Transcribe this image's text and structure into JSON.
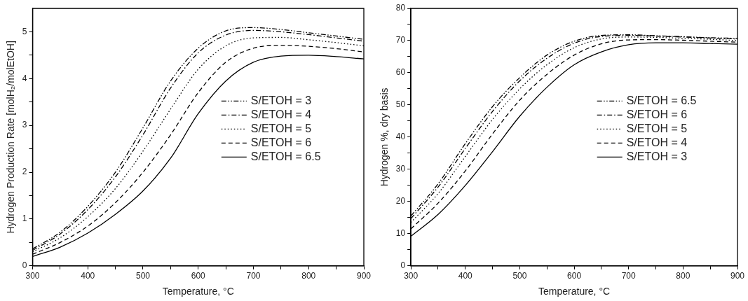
{
  "chart_data": [
    {
      "type": "line",
      "xlabel": "Temperature, °C",
      "ylabel": "Hydrogen Production Rate [molH₂/molEtOH]",
      "x": [
        300,
        350,
        400,
        450,
        500,
        550,
        600,
        650,
        700,
        750,
        800,
        850,
        900
      ],
      "xlim": [
        300,
        900
      ],
      "xticks": [
        300,
        {
          "value": 350,
          "label": null
        },
        400,
        {
          "value": 450,
          "label": null
        },
        500,
        {
          "value": 550,
          "label": null
        },
        600,
        {
          "value": 650,
          "label": null
        },
        700,
        {
          "value": 750,
          "label": null
        },
        800,
        {
          "value": 850,
          "label": null
        },
        900
      ],
      "ylim": [
        0,
        5.5
      ],
      "yticks": [
        0,
        {
          "value": 0.5,
          "label": null
        },
        1,
        {
          "value": 1.5,
          "label": null
        },
        2,
        {
          "value": 2.5,
          "label": null
        },
        3,
        {
          "value": 3.5,
          "label": null
        },
        4,
        {
          "value": 4.5,
          "label": null
        },
        5
      ],
      "grid": false,
      "legend": "right",
      "marker": "none",
      "series": [
        {
          "name": "S/ETOH = 3",
          "color": "#000000",
          "line_style": "dashdotdot",
          "values": [
            0.36,
            0.72,
            1.27,
            2.0,
            2.95,
            3.95,
            4.65,
            5.02,
            5.09,
            5.05,
            4.98,
            4.91,
            4.84
          ]
        },
        {
          "name": "S/ETOH = 4",
          "color": "#000000",
          "line_style": "dashdot",
          "values": [
            0.33,
            0.68,
            1.2,
            1.9,
            2.8,
            3.8,
            4.55,
            4.93,
            5.03,
            5.0,
            4.94,
            4.87,
            4.8
          ]
        },
        {
          "name": "S/ETOH = 5",
          "color": "#000000",
          "line_style": "dotted",
          "values": [
            0.3,
            0.6,
            1.05,
            1.65,
            2.45,
            3.35,
            4.2,
            4.7,
            4.87,
            4.88,
            4.83,
            4.77,
            4.7
          ]
        },
        {
          "name": "S/ETOH = 6",
          "color": "#000000",
          "line_style": "dashed",
          "values": [
            0.25,
            0.5,
            0.85,
            1.35,
            2.0,
            2.8,
            3.7,
            4.35,
            4.65,
            4.71,
            4.69,
            4.64,
            4.57
          ]
        },
        {
          "name": "S/ETOH = 6.5",
          "color": "#000000",
          "line_style": "solid",
          "values": [
            0.2,
            0.4,
            0.7,
            1.1,
            1.6,
            2.3,
            3.25,
            3.95,
            4.35,
            4.48,
            4.5,
            4.47,
            4.42
          ]
        }
      ]
    },
    {
      "type": "line",
      "xlabel": "Temperature, °C",
      "ylabel": "Hydrogen %, dry basis",
      "x": [
        300,
        350,
        400,
        450,
        500,
        550,
        600,
        650,
        700,
        750,
        800,
        850,
        900
      ],
      "xlim": [
        300,
        900
      ],
      "xticks": [
        300,
        {
          "value": 350,
          "label": null
        },
        400,
        {
          "value": 450,
          "label": null
        },
        500,
        {
          "value": 550,
          "label": null
        },
        600,
        {
          "value": 650,
          "label": null
        },
        700,
        {
          "value": 750,
          "label": null
        },
        800,
        {
          "value": 850,
          "label": null
        },
        900
      ],
      "ylim": [
        0,
        80
      ],
      "yticks": [
        0,
        {
          "value": 5,
          "label": null
        },
        10,
        {
          "value": 15,
          "label": null
        },
        20,
        {
          "value": 25,
          "label": null
        },
        30,
        {
          "value": 35,
          "label": null
        },
        40,
        {
          "value": 45,
          "label": null
        },
        50,
        {
          "value": 55,
          "label": null
        },
        60,
        {
          "value": 65,
          "label": null
        },
        70,
        {
          "value": 75,
          "label": null
        },
        80
      ],
      "grid": false,
      "legend": "right",
      "marker": "none",
      "series": [
        {
          "name": "S/ETOH = 6.5",
          "color": "#000000",
          "line_style": "dashdotdot",
          "values": [
            15.5,
            25.5,
            38,
            49.5,
            58.5,
            65.5,
            69.8,
            71.6,
            71.8,
            71.5,
            71.2,
            70.9,
            70.7
          ]
        },
        {
          "name": "S/ETOH = 6",
          "color": "#000000",
          "line_style": "dashdot",
          "values": [
            14.7,
            24.5,
            36.5,
            48,
            57.5,
            64.5,
            69.2,
            71.3,
            71.6,
            71.4,
            71.1,
            70.8,
            70.5
          ]
        },
        {
          "name": "S/ETOH = 5",
          "color": "#000000",
          "line_style": "dotted",
          "values": [
            13.5,
            22.5,
            34,
            45.5,
            55,
            62.5,
            67.8,
            70.5,
            71.1,
            71.0,
            70.7,
            70.4,
            70.0
          ]
        },
        {
          "name": "S/ETOH = 4",
          "color": "#000000",
          "line_style": "dashed",
          "values": [
            11.5,
            19.5,
            29.5,
            41,
            51.5,
            59.5,
            65.5,
            69,
            70.2,
            70.3,
            70.1,
            69.8,
            69.5
          ]
        },
        {
          "name": "S/ETOH = 3",
          "color": "#000000",
          "line_style": "solid",
          "values": [
            9.2,
            16,
            25,
            35.5,
            46.5,
            55.5,
            62.5,
            66.5,
            68.7,
            69.3,
            69.3,
            69.1,
            68.9
          ]
        }
      ]
    }
  ]
}
